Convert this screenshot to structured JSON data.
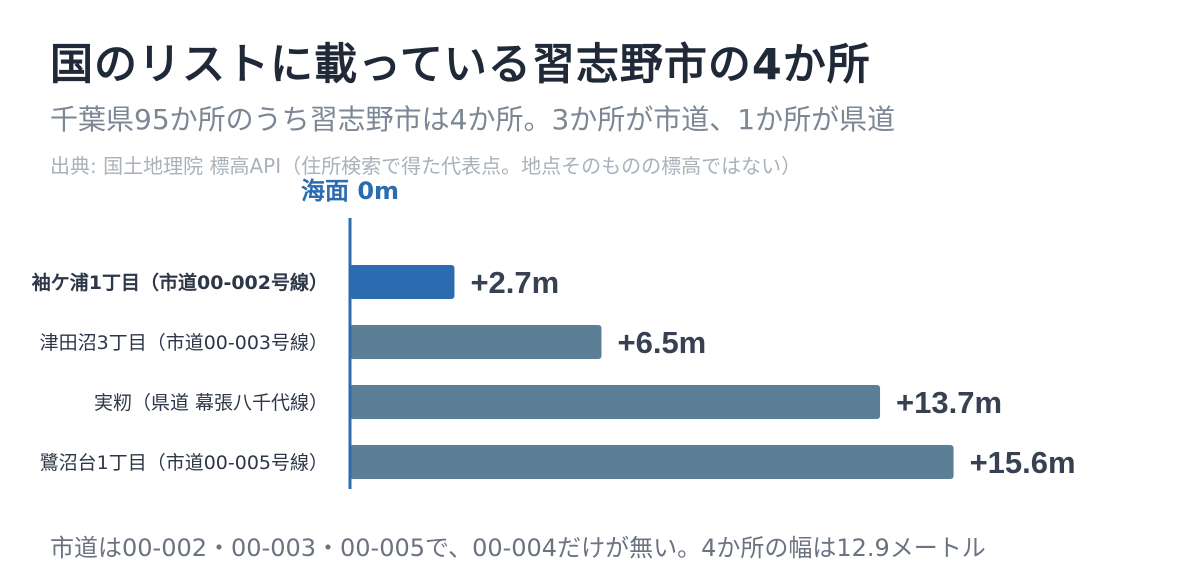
{
  "title": "国のリストに載っている習志野市の4か所",
  "subtitle": "千葉県95か所のうち習志野市は4か所。3か所が市道、1か所が県道",
  "source": "出典: 国土地理院 標高API（住所検索で得た代表点。地点そのものの標高ではない）",
  "footnote": "市道は00-002・00-003・00-005で、00-004だけが無い。4か所の幅は12.9メートル",
  "colors": {
    "highlight": "#2b6cb0",
    "bar": "#5b7f96",
    "axis": "#2b6cb0",
    "label": "#374151",
    "value": "#374151"
  },
  "chart_data": {
    "type": "bar",
    "orientation": "horizontal",
    "baseline_label": "海面 0m",
    "categories": [
      "袖ケ浦1丁目（市道00-002号線）",
      "津田沼3丁目（市道00-003号線）",
      "実籾（県道 幕張八千代線）",
      "鷺沼台1丁目（市道00-005号線）"
    ],
    "values": [
      2.7,
      6.5,
      13.7,
      15.6
    ],
    "value_labels": [
      "+2.7m",
      "+6.5m",
      "+13.7m",
      "+15.6m"
    ],
    "highlight_index": 0,
    "xlim": [
      0,
      16.8
    ],
    "unit": "m",
    "grid": false,
    "legend": "none"
  }
}
